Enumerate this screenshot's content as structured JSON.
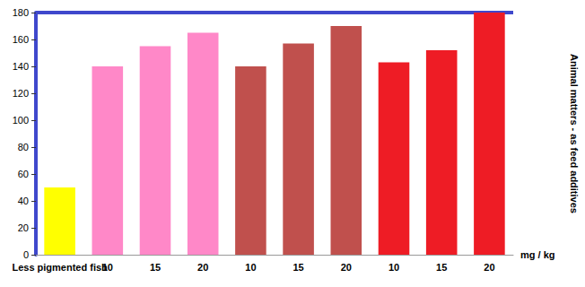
{
  "chart_data": {
    "type": "bar",
    "categories": [
      "Less pigmented fish",
      "10",
      "15",
      "20",
      "10",
      "15",
      "20",
      "10",
      "15",
      "20"
    ],
    "values": [
      50,
      140,
      155,
      165,
      140,
      157,
      170,
      143,
      152,
      180
    ],
    "colors": [
      "#ffff00",
      "#ff88c8",
      "#ff88c8",
      "#ff88c8",
      "#c0504d",
      "#c0504d",
      "#c0504d",
      "#ee1c25",
      "#ee1c25",
      "#ee1c25"
    ],
    "xlabel": "mg / kg",
    "annotation": "Animal matters - as feed additives",
    "ylim": [
      0,
      180
    ],
    "yticks": [
      0,
      20,
      40,
      60,
      80,
      100,
      120,
      140,
      160,
      180
    ],
    "grid": false,
    "data_labels": false
  }
}
